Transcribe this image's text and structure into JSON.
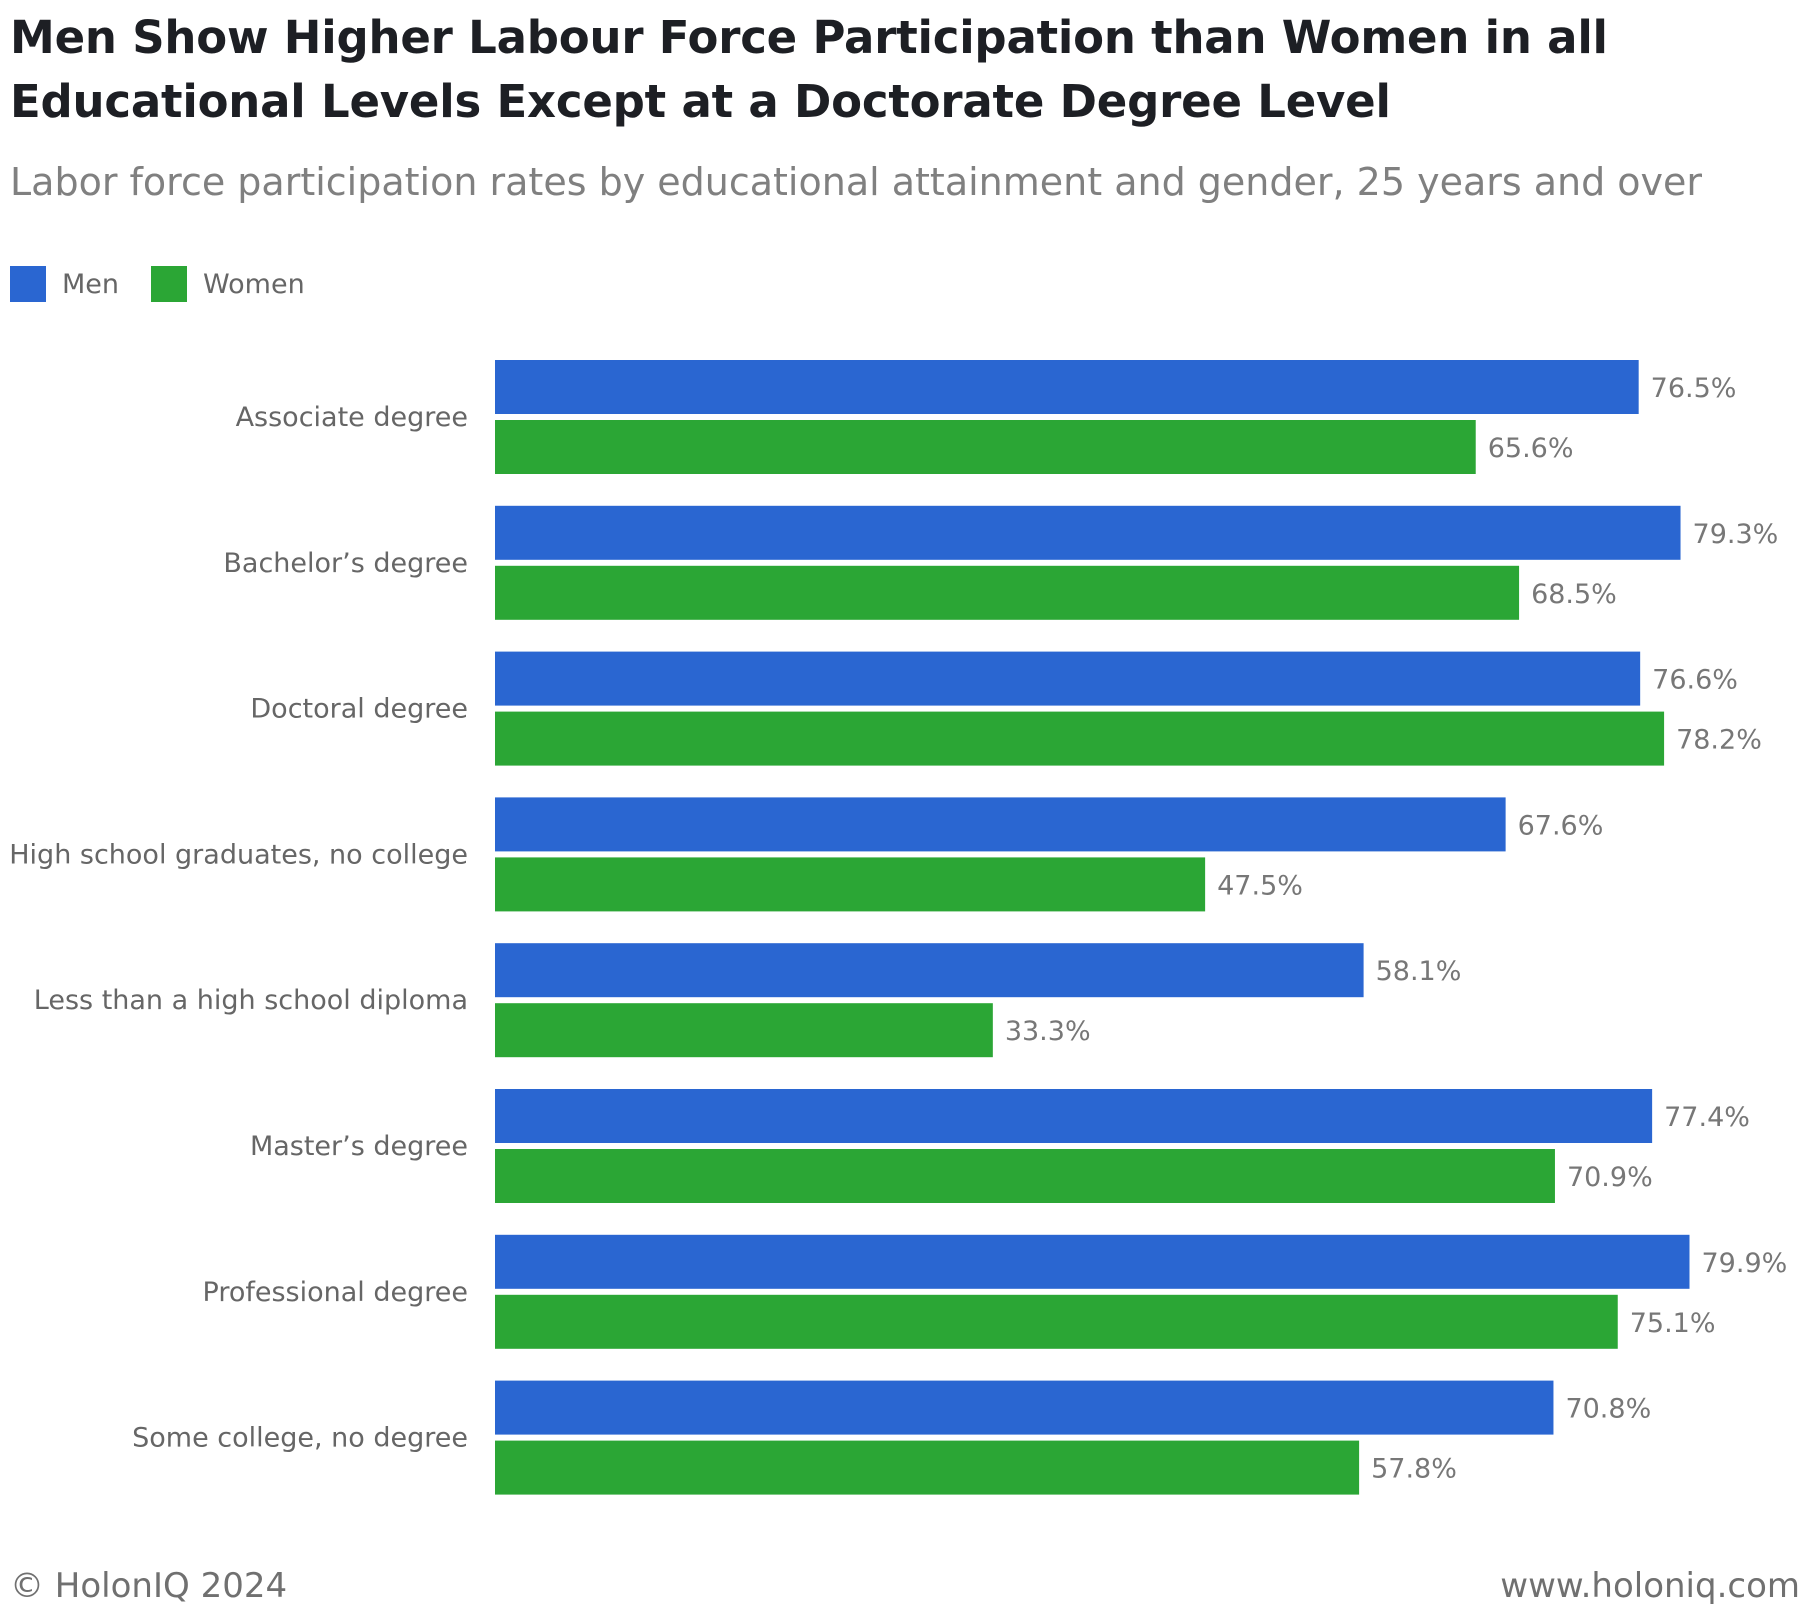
{
  "header": {
    "title": "Men Show Higher Labour Force Participation than Women in all Educational Levels Except at a Doctorate Degree Level",
    "subtitle": "Labor force participation rates by educational attainment and gender, 25 years and over"
  },
  "legend": {
    "items": [
      {
        "label": "Men",
        "color": "#2a66d1"
      },
      {
        "label": "Women",
        "color": "#2ba635"
      }
    ]
  },
  "chart_data": {
    "type": "bar",
    "orientation": "horizontal",
    "categories": [
      "Associate degree",
      "Bachelor’s degree",
      "Doctoral degree",
      "High school graduates, no college",
      "Less than a high school diploma",
      "Master’s degree",
      "Professional degree",
      "Some college, no degree"
    ],
    "series": [
      {
        "name": "Men",
        "color": "#2a66d1",
        "values": [
          76.5,
          79.3,
          76.6,
          67.6,
          58.1,
          77.4,
          79.9,
          70.8
        ],
        "labels": [
          "76.5%",
          "79.3%",
          "76.6%",
          "67.6%",
          "58.1%",
          "77.4%",
          "79.9%",
          "70.8%"
        ]
      },
      {
        "name": "Women",
        "color": "#2ba635",
        "values": [
          65.6,
          68.5,
          78.2,
          47.5,
          33.3,
          70.9,
          75.1,
          57.8
        ],
        "labels": [
          "65.6%",
          "68.5%",
          "78.2%",
          "47.5%",
          "33.3%",
          "70.9%",
          "75.1%",
          "57.8%"
        ]
      }
    ],
    "title": "Men Show Higher Labour Force Participation than Women in all Educational Levels Except at a Doctorate Degree Level",
    "xlabel": "",
    "ylabel": "",
    "xlim": [
      0,
      80
    ],
    "grid": false,
    "legend_position": "top-left"
  },
  "footer": {
    "copyright": "© HolonIQ 2024",
    "website": "www.holoniq.com"
  }
}
